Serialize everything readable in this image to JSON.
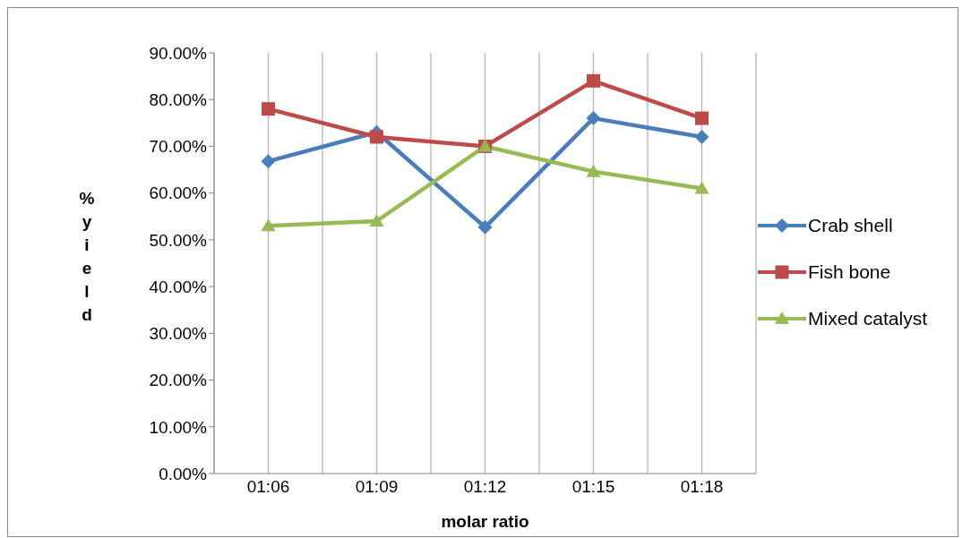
{
  "chart_data": {
    "type": "line",
    "xlabel": "molar ratio",
    "ylabel": "% yield",
    "categories": [
      "01:06",
      "01:09",
      "01:12",
      "01:15",
      "01:18"
    ],
    "series": [
      {
        "name": "Crab shell",
        "color": "#4a7ebb",
        "marker": "diamond",
        "values": [
          66.8,
          73,
          52.7,
          76,
          72
        ]
      },
      {
        "name": "Fish bone",
        "color": "#be4b48",
        "marker": "square",
        "values": [
          78,
          72,
          70,
          84,
          76
        ]
      },
      {
        "name": "Mixed catalyst",
        "color": "#98b954",
        "marker": "triangle",
        "values": [
          53,
          54,
          70,
          64.6,
          61
        ]
      }
    ],
    "ylim": [
      0,
      90
    ],
    "yticks": [
      {
        "value": 0,
        "label": "0.00%"
      },
      {
        "value": 10,
        "label": "10.00%"
      },
      {
        "value": 20,
        "label": "20.00%"
      },
      {
        "value": 30,
        "label": "30.00%"
      },
      {
        "value": 40,
        "label": "40.00%"
      },
      {
        "value": 50,
        "label": "50.00%"
      },
      {
        "value": 60,
        "label": "60.00%"
      },
      {
        "value": 70,
        "label": "70.00%"
      },
      {
        "value": 80,
        "label": "80.00%"
      },
      {
        "value": 90,
        "label": "90.00%"
      }
    ],
    "grid": "x",
    "legend": "right",
    "line_style": "solid"
  }
}
